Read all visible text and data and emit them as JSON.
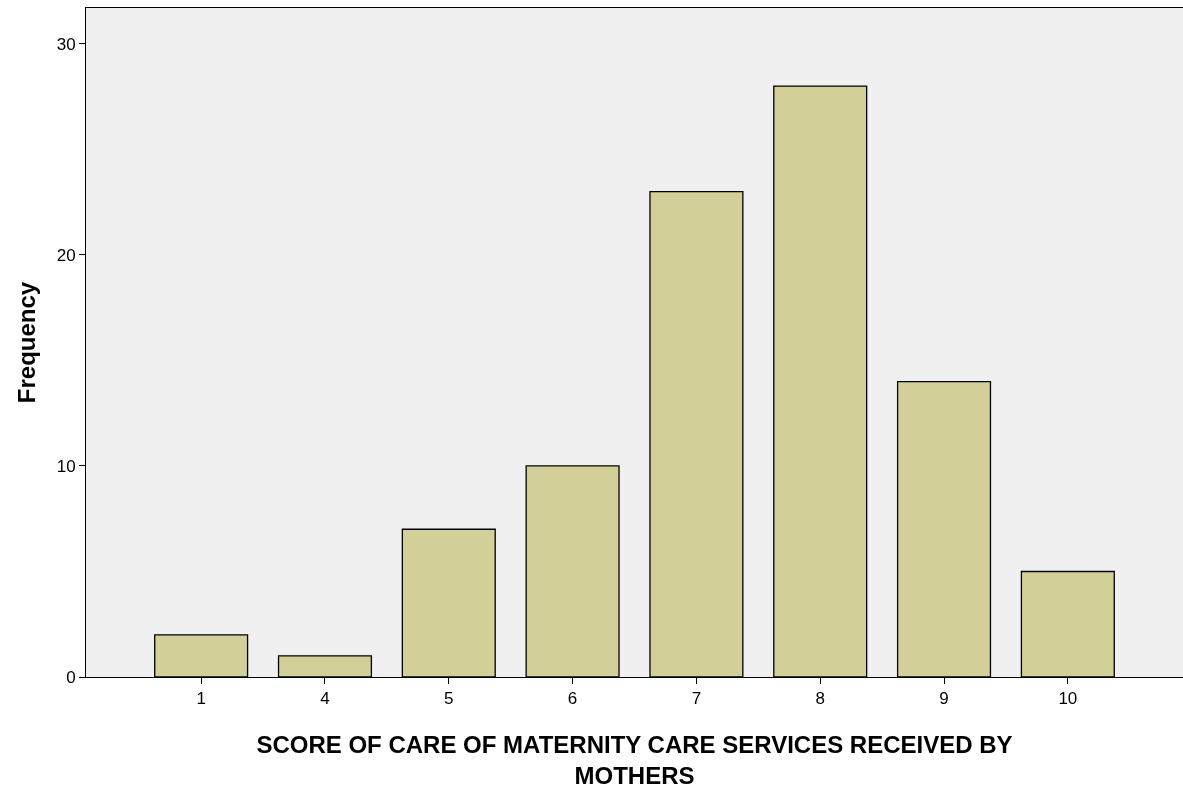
{
  "chart_data": {
    "type": "bar",
    "xlabel": "SCORE OF CARE OF MATERNITY CARE SERVICES RECEIVED BY\nMOTHERS",
    "ylabel": "Frequency",
    "categories": [
      "1",
      "4",
      "5",
      "6",
      "7",
      "8",
      "9",
      "10"
    ],
    "values": [
      2,
      1,
      7,
      10,
      23,
      28,
      14,
      5
    ],
    "color": "#d3cf98",
    "ylim": [
      0,
      31.7
    ],
    "yticks": [
      0,
      10,
      20,
      30
    ],
    "grid": false
  }
}
